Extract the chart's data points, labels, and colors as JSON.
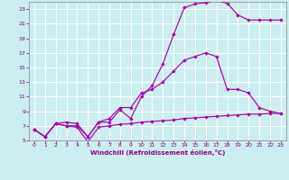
{
  "xlabel": "Windchill (Refroidissement éolien,°C)",
  "xlim": [
    -0.5,
    23.5
  ],
  "ylim": [
    5,
    24
  ],
  "xticks": [
    0,
    1,
    2,
    3,
    4,
    5,
    6,
    7,
    8,
    9,
    10,
    11,
    12,
    13,
    14,
    15,
    16,
    17,
    18,
    19,
    20,
    21,
    22,
    23
  ],
  "yticks": [
    5,
    7,
    9,
    11,
    13,
    15,
    17,
    19,
    21,
    23
  ],
  "background_color": "#cceef0",
  "grid_color": "#aadddd",
  "line_color": "#aa00aa",
  "line1_x": [
    0,
    1,
    2,
    3,
    4,
    5,
    6,
    7,
    8,
    9,
    10,
    11,
    12,
    13,
    14,
    15,
    16,
    17,
    18,
    19,
    20,
    21,
    22,
    23
  ],
  "line1_y": [
    6.5,
    5.5,
    7.3,
    7.0,
    6.8,
    4.8,
    6.8,
    7.0,
    7.2,
    7.3,
    7.5,
    7.6,
    7.7,
    7.8,
    8.0,
    8.1,
    8.2,
    8.3,
    8.4,
    8.5,
    8.6,
    8.6,
    8.7,
    8.7
  ],
  "line2_x": [
    0,
    1,
    2,
    3,
    4,
    5,
    6,
    7,
    8,
    9,
    10,
    11,
    12,
    13,
    14,
    15,
    16,
    17,
    18,
    19,
    20,
    21,
    22,
    23
  ],
  "line2_y": [
    6.5,
    5.5,
    7.3,
    7.5,
    7.3,
    5.5,
    7.5,
    7.5,
    9.2,
    8.0,
    11.0,
    12.5,
    15.5,
    19.5,
    23.2,
    23.7,
    23.9,
    24.2,
    23.8,
    22.2,
    21.5,
    21.5,
    21.5,
    21.5
  ],
  "line3_x": [
    0,
    1,
    2,
    3,
    4,
    5,
    6,
    7,
    8,
    9,
    10,
    11,
    12,
    13,
    14,
    15,
    16,
    17,
    18,
    19,
    20,
    21,
    22,
    23
  ],
  "line3_y": [
    6.5,
    5.5,
    7.3,
    7.0,
    7.0,
    5.5,
    7.5,
    8.0,
    9.5,
    9.5,
    11.5,
    12.0,
    13.0,
    14.5,
    16.0,
    16.5,
    17.0,
    16.5,
    12.0,
    12.0,
    11.5,
    9.5,
    9.0,
    8.7
  ]
}
